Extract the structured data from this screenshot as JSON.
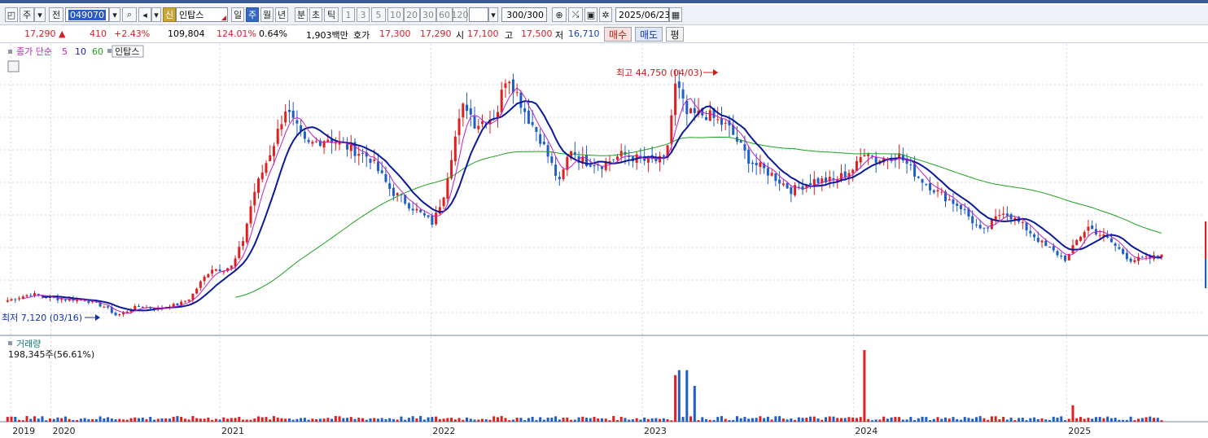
{
  "toolbar": {
    "market": "주",
    "prev_label": "전",
    "code": "049070",
    "new_badge": "신",
    "name": "인탑스",
    "periods": [
      "일",
      "주",
      "월",
      "년"
    ],
    "period_selected": "주",
    "intervals": [
      "분",
      "초",
      "틱"
    ],
    "numbers": [
      "1",
      "3",
      "5",
      "10",
      "20",
      "30",
      "60",
      "120"
    ],
    "count": "300/300",
    "date": "2025/06/23"
  },
  "quote": {
    "price": "17,290",
    "change": "410",
    "change_pct": "+2.43%",
    "volume": "109,804",
    "volume_ratio": "124.01%",
    "turnover_pct": "0.64%",
    "amount": "1,903백만",
    "hoga_label": "호가",
    "ask": "17,300",
    "bid": "17,290",
    "open_label": "시",
    "open": "17,100",
    "high_label": "고",
    "high": "17,500",
    "low_label": "저",
    "low": "16,710",
    "buy_label": "매수",
    "sell_label": "매도",
    "eval_label": "평"
  },
  "legend": {
    "prefix": "종가 단순",
    "ma5": "5",
    "ma10": "10",
    "ma60": "60",
    "name": "인탑스",
    "colors": {
      "ma5": "#c020c0",
      "ma10": "#2020c0",
      "ma60": "#20a020"
    }
  },
  "annotations": {
    "high": "최고 44,750 (04/03)",
    "low": "최저 7,120 (03/16)"
  },
  "volume_panel": {
    "title": "거래량",
    "value": "198,345주(56.61%)"
  },
  "colors": {
    "up": "#e02020",
    "down": "#1e5ec8",
    "ma5": "#c020c0",
    "ma10": "#0a1a9a",
    "ma60": "#20a020"
  },
  "chart_data": {
    "type": "candlestick",
    "x_labels": [
      "2019",
      "2020",
      "2021",
      "2022",
      "2023",
      "2024",
      "2025"
    ],
    "x_label_pos": [
      0.0,
      0.19,
      0.99,
      1.99,
      2.99,
      3.99,
      5.0
    ],
    "x_range": [
      -0.02,
      5.5
    ],
    "y_range": [
      6000,
      48000
    ],
    "close_path": [
      [
        -0.02,
        10300
      ],
      [
        0.1,
        11300
      ],
      [
        0.2,
        10600
      ],
      [
        0.35,
        10400
      ],
      [
        0.45,
        9300
      ],
      [
        0.5,
        8000
      ],
      [
        0.55,
        8700
      ],
      [
        0.6,
        9400
      ],
      [
        0.7,
        9100
      ],
      [
        0.8,
        9800
      ],
      [
        0.85,
        10700
      ],
      [
        0.9,
        13100
      ],
      [
        0.95,
        15200
      ],
      [
        1.0,
        15000
      ],
      [
        1.05,
        15500
      ],
      [
        1.1,
        19500
      ],
      [
        1.15,
        26500
      ],
      [
        1.25,
        34500
      ],
      [
        1.3,
        39500
      ],
      [
        1.4,
        33800
      ],
      [
        1.5,
        35000
      ],
      [
        1.6,
        33500
      ],
      [
        1.7,
        32000
      ],
      [
        1.8,
        27000
      ],
      [
        1.9,
        24500
      ],
      [
        2.0,
        22000
      ],
      [
        2.05,
        26500
      ],
      [
        2.1,
        34500
      ],
      [
        2.15,
        40500
      ],
      [
        2.2,
        37000
      ],
      [
        2.3,
        38500
      ],
      [
        2.35,
        45000
      ],
      [
        2.45,
        38000
      ],
      [
        2.5,
        35500
      ],
      [
        2.6,
        28000
      ],
      [
        2.65,
        33500
      ],
      [
        2.7,
        31500
      ],
      [
        2.8,
        31000
      ],
      [
        2.9,
        32500
      ],
      [
        3.0,
        31500
      ],
      [
        3.1,
        31500
      ],
      [
        3.15,
        43500
      ],
      [
        3.2,
        38500
      ],
      [
        3.3,
        38500
      ],
      [
        3.4,
        36500
      ],
      [
        3.5,
        31500
      ],
      [
        3.6,
        29500
      ],
      [
        3.7,
        27000
      ],
      [
        3.8,
        28500
      ],
      [
        3.9,
        28500
      ],
      [
        4.0,
        30500
      ],
      [
        4.05,
        33500
      ],
      [
        4.1,
        31500
      ],
      [
        4.2,
        32500
      ],
      [
        4.3,
        29000
      ],
      [
        4.4,
        26500
      ],
      [
        4.5,
        24500
      ],
      [
        4.6,
        20500
      ],
      [
        4.7,
        24000
      ],
      [
        4.8,
        21500
      ],
      [
        4.9,
        18500
      ],
      [
        5.0,
        16500
      ],
      [
        5.05,
        19500
      ],
      [
        5.1,
        21500
      ],
      [
        5.2,
        19500
      ],
      [
        5.3,
        16500
      ],
      [
        5.4,
        16700
      ],
      [
        5.45,
        17290
      ]
    ],
    "volume_spikes": [
      {
        "x": 3.15,
        "v": 0.65
      },
      {
        "x": 3.17,
        "v": 0.72
      },
      {
        "x": 3.2,
        "v": 0.72
      },
      {
        "x": 3.23,
        "v": 0.5
      },
      {
        "x": 4.04,
        "v": 1.0
      },
      {
        "x": 5.03,
        "v": 0.23
      }
    ],
    "volume_scale_max": 198345,
    "high_point": {
      "x": 3.21,
      "y": 44750
    },
    "low_point": {
      "x": 0.49,
      "y": 7120
    }
  }
}
